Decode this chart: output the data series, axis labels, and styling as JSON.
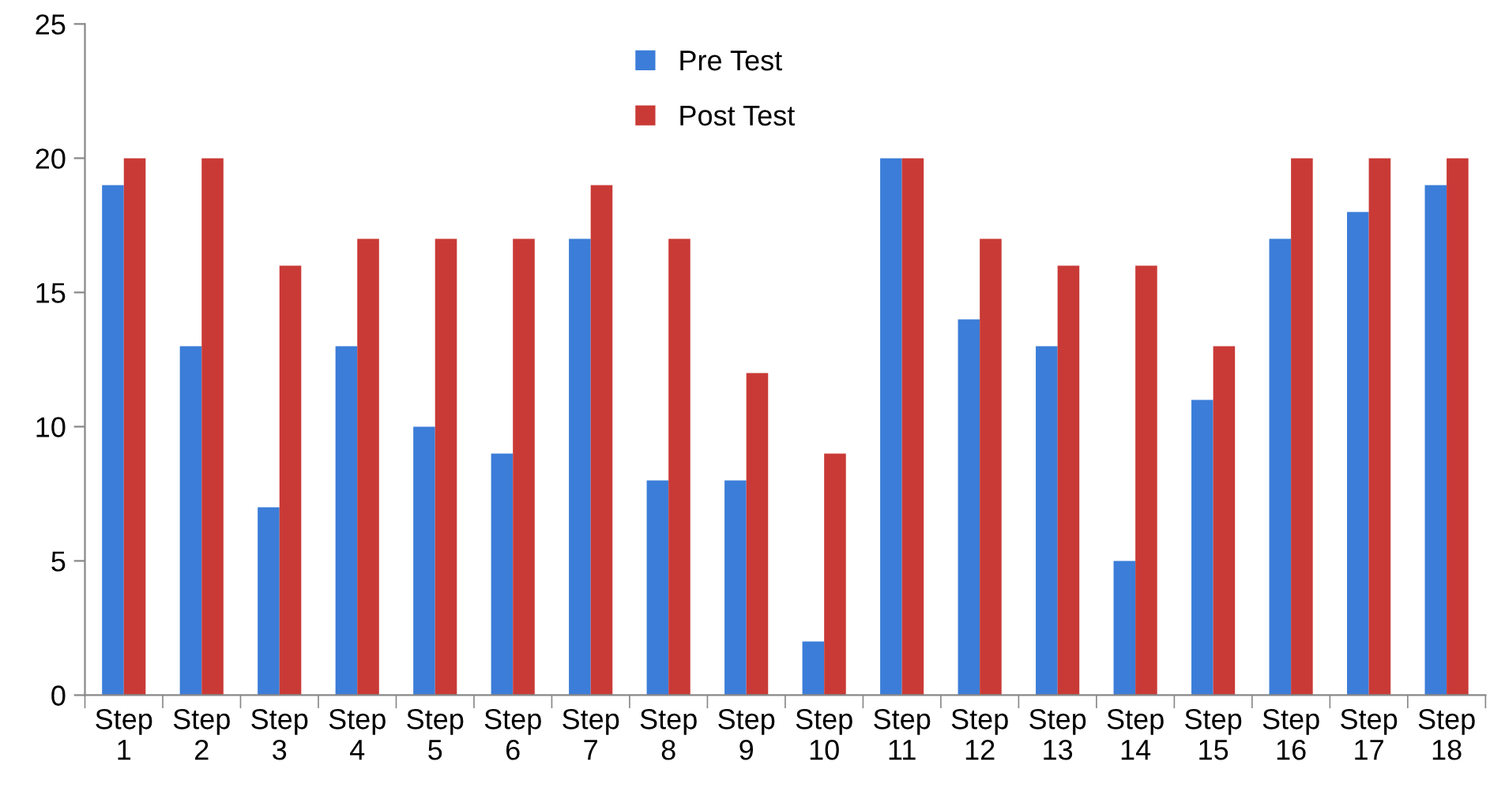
{
  "chart_data": {
    "type": "bar",
    "categories": [
      "Step 1",
      "Step 2",
      "Step 3",
      "Step 4",
      "Step 5",
      "Step 6",
      "Step 7",
      "Step 8",
      "Step 9",
      "Step 10",
      "Step 11",
      "Step 12",
      "Step 13",
      "Step 14",
      "Step 15",
      "Step 16",
      "Step 17",
      "Step 18"
    ],
    "series": [
      {
        "name": "Pre Test",
        "color": "#3b7dd8",
        "values": [
          19,
          13,
          7,
          13,
          10,
          9,
          17,
          8,
          8,
          2,
          20,
          14,
          13,
          5,
          11,
          17,
          18,
          19
        ]
      },
      {
        "name": "Post Test",
        "color": "#c93a36",
        "values": [
          20,
          20,
          16,
          17,
          17,
          17,
          19,
          17,
          12,
          9,
          20,
          17,
          16,
          16,
          13,
          20,
          20,
          20
        ]
      }
    ],
    "ylim": [
      0,
      25
    ],
    "yticks": [
      0,
      5,
      10,
      15,
      20,
      25
    ],
    "grid": false,
    "legend": "top"
  }
}
